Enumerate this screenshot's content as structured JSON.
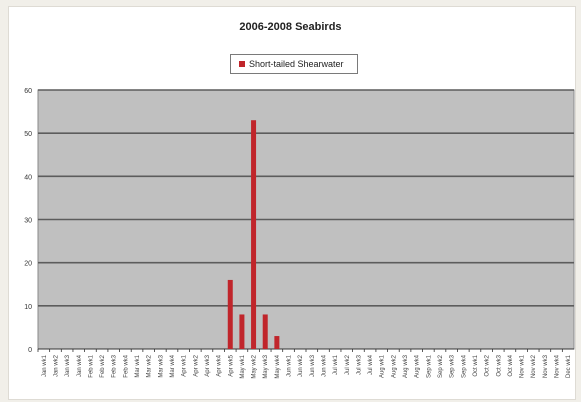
{
  "chart_data": {
    "type": "bar",
    "title": "2006-2008 Seabirds",
    "xlabel": "",
    "ylabel": "",
    "ylim": [
      0,
      60
    ],
    "yticks": [
      0,
      10,
      20,
      30,
      40,
      50,
      60
    ],
    "grid": true,
    "legend_position": "top-center",
    "plot_background": "#c0c0c0",
    "series": [
      {
        "name": "Short-tailed Shearwater",
        "color": "#c0252b",
        "values": [
          0,
          0,
          0,
          0,
          0,
          0,
          0,
          0,
          0,
          0,
          0,
          0,
          0,
          0,
          0,
          0,
          16,
          8,
          53,
          8,
          3,
          0,
          0,
          0,
          0,
          0,
          0,
          0,
          0,
          0,
          0,
          0,
          0,
          0,
          0,
          0,
          0,
          0,
          0,
          0,
          0,
          0,
          0,
          0,
          0,
          0
        ]
      }
    ],
    "categories": [
      "Jan wk1",
      "Jan wk2",
      "Jan wk3",
      "Jan wk4",
      "Feb wk1",
      "Feb wk2",
      "Feb wk3",
      "Feb wk4",
      "Mar wk1",
      "Mar wk2",
      "Mar wk3",
      "Mar wk4",
      "Apr wk1",
      "Apr wk2",
      "Apr wk3",
      "Apr wk4",
      "Apr wk5",
      "May wk1",
      "May wk2",
      "May wk3",
      "May wk4",
      "Jun wk1",
      "Jun wk2",
      "Jun wk3",
      "Jun wk4",
      "Jul wk1",
      "Jul wk2",
      "Jul wk3",
      "Jul wk4",
      "Aug wk1",
      "Aug wk2",
      "Aug wk3",
      "Aug wk4",
      "Sep wk1",
      "Sep wk2",
      "Sep wk3",
      "Sep wk4",
      "Oct wk1",
      "Oct wk2",
      "Oct wk3",
      "Oct wk4",
      "Nov wk1",
      "Nov wk2",
      "Nov wk3",
      "Nov wk4",
      "Dec wk1"
    ]
  }
}
